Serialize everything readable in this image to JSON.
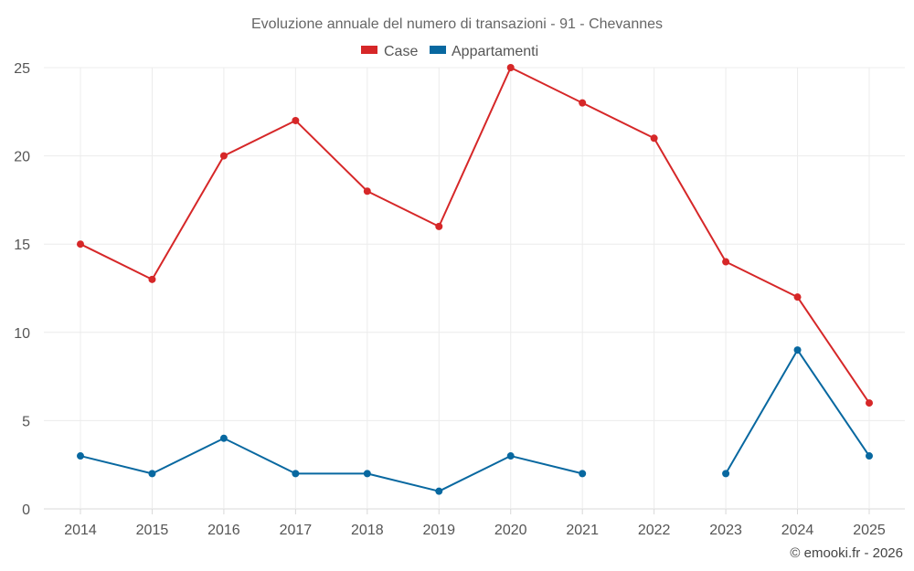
{
  "chart_data": {
    "type": "line",
    "title": "Evoluzione annuale del numero di transazioni - 91 - Chevannes",
    "categories": [
      "2014",
      "2015",
      "2016",
      "2017",
      "2018",
      "2019",
      "2020",
      "2021",
      "2022",
      "2023",
      "2024",
      "2025"
    ],
    "series": [
      {
        "name": "Case",
        "color": "#d62728",
        "values": [
          15,
          13,
          20,
          22,
          18,
          16,
          25,
          23,
          21,
          14,
          12,
          6
        ]
      },
      {
        "name": "Appartamenti",
        "color": "#0868a0",
        "values": [
          3,
          2,
          4,
          2,
          2,
          1,
          3,
          2,
          null,
          2,
          9,
          3
        ]
      }
    ],
    "ylim": [
      0,
      25
    ],
    "yticks": [
      0,
      5,
      10,
      15,
      20,
      25
    ],
    "xlabel": "",
    "ylabel": "",
    "legend_position": "top-center",
    "grid": true
  },
  "credit": "© emooki.fr - 2026"
}
